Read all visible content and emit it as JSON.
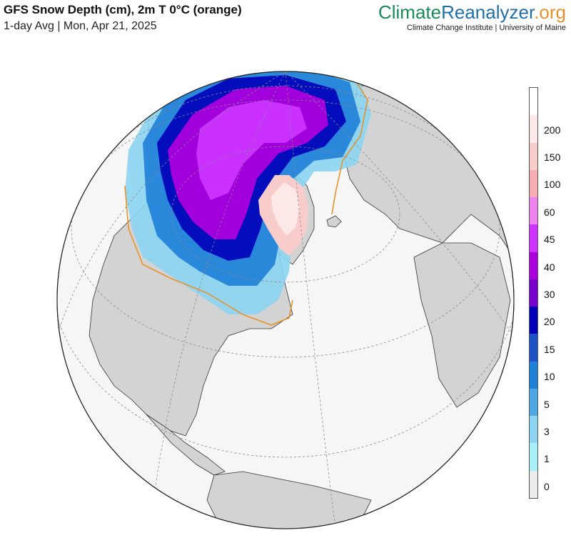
{
  "header": {
    "title": "GFS Snow Depth (cm), 2m T 0°C (orange)",
    "subtitle": "1-day Avg | Mon, Apr 21, 2025"
  },
  "brand": {
    "name_part1": "Climate",
    "name_part2": "Reanalyzer",
    "name_part3": ".org",
    "affiliation": "Climate Change Institute | University of Maine"
  },
  "map": {
    "projection": "orthographic",
    "center": "North Atlantic / North Pole",
    "colors": {
      "ocean": "#f6f6f6",
      "land": "#d3d3d3",
      "freezing_line": "#e8922a",
      "graticule": "#888888"
    }
  },
  "legend": {
    "items": [
      {
        "label": "",
        "color": "#ffffff"
      },
      {
        "label": "200",
        "color": "#fde8e8"
      },
      {
        "label": "150",
        "color": "#f9cccc"
      },
      {
        "label": "100",
        "color": "#f6aeb3"
      },
      {
        "label": "60",
        "color": "#ee82ee"
      },
      {
        "label": "45",
        "color": "#cc33ff"
      },
      {
        "label": "40",
        "color": "#aa00dd"
      },
      {
        "label": "30",
        "color": "#7700cc"
      },
      {
        "label": "20",
        "color": "#0000b8"
      },
      {
        "label": "15",
        "color": "#1c52c6"
      },
      {
        "label": "10",
        "color": "#1f80d8"
      },
      {
        "label": "5",
        "color": "#4fa8e6"
      },
      {
        "label": "3",
        "color": "#8cd4f2"
      },
      {
        "label": "1",
        "color": "#a8f0f8"
      },
      {
        "label": "0",
        "color": "#ececec"
      }
    ]
  }
}
